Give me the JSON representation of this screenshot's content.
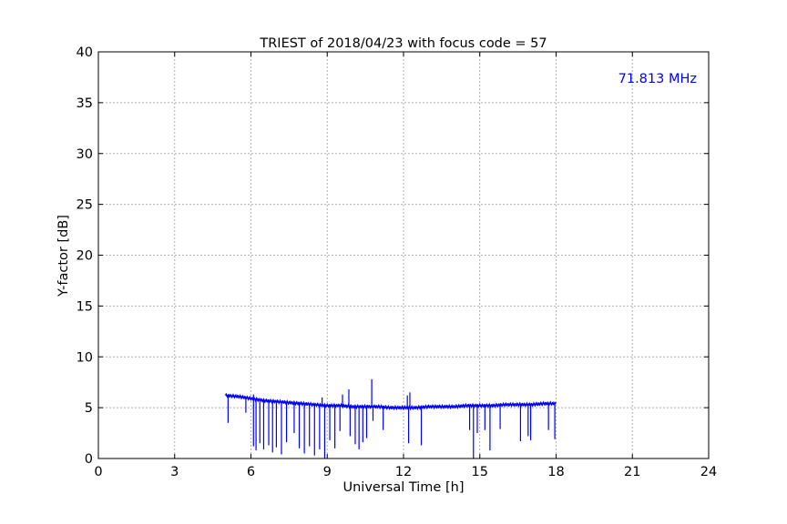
{
  "chart_data": {
    "type": "line",
    "title": "TRIEST of 2018/04/23 with focus code = 57",
    "xlabel": "Universal Time [h]",
    "ylabel": "Y-factor [dB]",
    "xlim": [
      0,
      24
    ],
    "ylim": [
      0,
      40
    ],
    "xticks": [
      0,
      3,
      6,
      9,
      12,
      15,
      18,
      21,
      24
    ],
    "yticks": [
      0,
      5,
      10,
      15,
      20,
      25,
      30,
      35,
      40
    ],
    "grid": true,
    "annotation": "71.813 MHz",
    "annotation_placement": "top-right",
    "series": [
      {
        "color": "#0000ff",
        "x": [
          5.0,
          5.5,
          6.0,
          6.5,
          7.0,
          7.5,
          8.0,
          8.5,
          9.0,
          9.5,
          10.0,
          10.5,
          11.0,
          11.5,
          12.0,
          12.5,
          13.0,
          13.5,
          14.0,
          14.5,
          15.0,
          15.5,
          16.0,
          16.5,
          17.0,
          17.5,
          18.0
        ],
        "y": [
          6.2,
          6.1,
          5.9,
          5.7,
          5.6,
          5.5,
          5.4,
          5.3,
          5.2,
          5.2,
          5.1,
          5.1,
          5.1,
          5.0,
          5.0,
          5.0,
          5.1,
          5.1,
          5.1,
          5.2,
          5.2,
          5.2,
          5.3,
          5.3,
          5.3,
          5.4,
          5.4
        ]
      }
    ],
    "spikes_down": [
      [
        5.1,
        3.5
      ],
      [
        5.8,
        4.5
      ],
      [
        6.1,
        1.2
      ],
      [
        6.2,
        0.8
      ],
      [
        6.35,
        1.5
      ],
      [
        6.5,
        0.9
      ],
      [
        6.7,
        1.3
      ],
      [
        6.85,
        0.6
      ],
      [
        7.0,
        1.1
      ],
      [
        7.2,
        0.4
      ],
      [
        7.4,
        1.6
      ],
      [
        7.7,
        2.5
      ],
      [
        7.9,
        1.0
      ],
      [
        8.1,
        0.5
      ],
      [
        8.3,
        1.2
      ],
      [
        8.5,
        0.3
      ],
      [
        8.7,
        0.9
      ],
      [
        8.9,
        0.0
      ],
      [
        9.1,
        1.8
      ],
      [
        9.3,
        1.0
      ],
      [
        9.5,
        2.7
      ],
      [
        9.9,
        2.2
      ],
      [
        10.1,
        1.4
      ],
      [
        10.25,
        0.9
      ],
      [
        10.4,
        1.6
      ],
      [
        10.55,
        2.0
      ],
      [
        10.8,
        3.7
      ],
      [
        11.2,
        2.8
      ],
      [
        12.2,
        1.5
      ],
      [
        12.7,
        1.3
      ],
      [
        14.6,
        2.8
      ],
      [
        14.75,
        0.0
      ],
      [
        14.9,
        2.5
      ],
      [
        15.2,
        2.8
      ],
      [
        15.4,
        0.8
      ],
      [
        15.8,
        2.9
      ],
      [
        16.6,
        1.7
      ],
      [
        16.9,
        2.2
      ],
      [
        17.0,
        1.8
      ],
      [
        17.7,
        2.8
      ],
      [
        17.95,
        1.9
      ]
    ],
    "spikes_up": [
      [
        6.1,
        6.3
      ],
      [
        8.8,
        6.0
      ],
      [
        9.6,
        6.3
      ],
      [
        9.85,
        6.8
      ],
      [
        10.75,
        7.8
      ],
      [
        12.25,
        6.5
      ],
      [
        12.15,
        6.2
      ]
    ]
  }
}
